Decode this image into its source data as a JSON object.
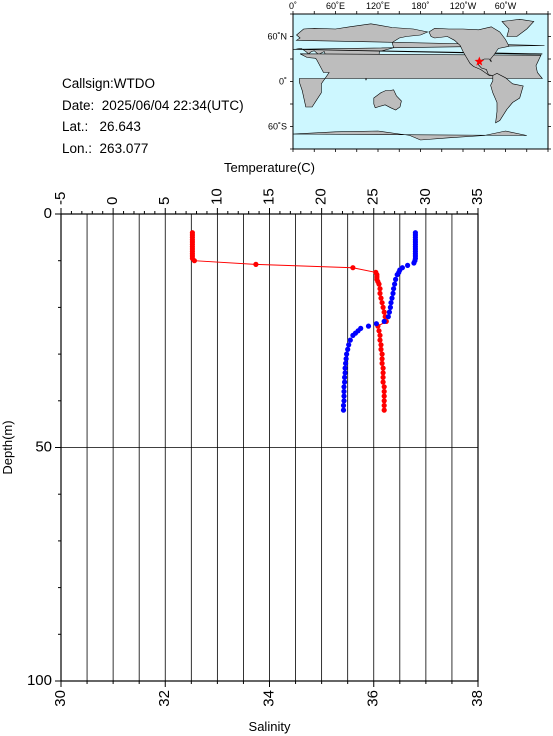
{
  "info": {
    "callsign_label": "Callsign:",
    "callsign": "WTDO",
    "date_label": "Date:",
    "date": "2025/06/04 22:34(UTC)",
    "lat_label": "Lat.:",
    "lat": "26.643",
    "lon_label": "Lon.:",
    "lon": "263.077"
  },
  "map": {
    "lon_labels": [
      "0˚",
      "60˚E",
      "120˚E",
      "180˚",
      "120˚W",
      "60˚W"
    ],
    "lat_labels": [
      "60˚N",
      "0˚",
      "60˚S"
    ],
    "ocean_color": "#cdf7ff",
    "land_color": "#bdbdbd",
    "marker": {
      "lat": 26.643,
      "lon": 263.077,
      "symbol": "star",
      "color": "#ff0000"
    }
  },
  "chart_data": {
    "type": "scatter",
    "title": "",
    "ylabel": "Depth(m)",
    "ylim": [
      0,
      100
    ],
    "y_inverted": true,
    "y_ticks": [
      0,
      50,
      100
    ],
    "top_axis": {
      "label": "Temperature(C)",
      "range": [
        -5,
        35
      ],
      "ticks": [
        -5,
        0,
        5,
        10,
        15,
        20,
        25,
        30,
        35
      ]
    },
    "bottom_axis": {
      "label": "Salinity",
      "range": [
        30,
        38
      ],
      "ticks": [
        30,
        32,
        34,
        36,
        38
      ]
    },
    "grid": true,
    "series": [
      {
        "axis": "top",
        "color": "#ff0000",
        "connected": true,
        "points": [
          [
            7.6,
            4.0
          ],
          [
            7.6,
            4.5
          ],
          [
            7.6,
            5.0
          ],
          [
            7.6,
            5.5
          ],
          [
            7.6,
            6.0
          ],
          [
            7.6,
            6.5
          ],
          [
            7.6,
            7.0
          ],
          [
            7.6,
            7.5
          ],
          [
            7.6,
            8.0
          ],
          [
            7.6,
            8.5
          ],
          [
            7.6,
            9.0
          ],
          [
            7.6,
            9.5
          ],
          [
            7.8,
            10.0
          ],
          [
            13.7,
            10.8
          ],
          [
            23.0,
            11.5
          ],
          [
            25.2,
            12.5
          ],
          [
            25.3,
            13.0
          ],
          [
            25.3,
            13.5
          ],
          [
            25.3,
            14.0
          ],
          [
            25.4,
            14.5
          ],
          [
            25.5,
            15.0
          ],
          [
            25.6,
            16.0
          ],
          [
            25.6,
            17.0
          ],
          [
            25.7,
            18.0
          ],
          [
            25.8,
            19.0
          ],
          [
            25.9,
            20.0
          ],
          [
            26.0,
            21.0
          ],
          [
            26.1,
            22.0
          ],
          [
            26.2,
            23.0
          ],
          [
            25.4,
            24.0
          ],
          [
            25.5,
            25.0
          ],
          [
            25.6,
            26.0
          ],
          [
            25.6,
            27.0
          ],
          [
            25.7,
            28.0
          ],
          [
            25.7,
            29.0
          ],
          [
            25.8,
            30.0
          ],
          [
            25.8,
            31.0
          ],
          [
            25.8,
            32.0
          ],
          [
            25.9,
            33.0
          ],
          [
            25.9,
            34.0
          ],
          [
            25.9,
            35.0
          ],
          [
            25.9,
            36.0
          ],
          [
            26.0,
            37.0
          ],
          [
            26.0,
            38.0
          ],
          [
            26.0,
            39.0
          ],
          [
            26.0,
            40.0
          ],
          [
            26.0,
            41.0
          ],
          [
            26.0,
            42.0
          ]
        ]
      },
      {
        "axis": "bottom",
        "color": "#0000ff",
        "connected": false,
        "points": [
          [
            36.8,
            4.0
          ],
          [
            36.8,
            4.5
          ],
          [
            36.8,
            5.0
          ],
          [
            36.8,
            5.5
          ],
          [
            36.8,
            6.0
          ],
          [
            36.8,
            6.5
          ],
          [
            36.8,
            7.0
          ],
          [
            36.8,
            7.5
          ],
          [
            36.8,
            8.0
          ],
          [
            36.8,
            8.5
          ],
          [
            36.8,
            9.0
          ],
          [
            36.8,
            9.5
          ],
          [
            36.79,
            10.0
          ],
          [
            36.77,
            10.5
          ],
          [
            36.65,
            11.0
          ],
          [
            36.55,
            11.5
          ],
          [
            36.5,
            12.0
          ],
          [
            36.48,
            12.5
          ],
          [
            36.45,
            13.0
          ],
          [
            36.42,
            14.0
          ],
          [
            36.4,
            15.0
          ],
          [
            36.38,
            16.0
          ],
          [
            36.37,
            17.0
          ],
          [
            36.35,
            18.0
          ],
          [
            36.33,
            19.0
          ],
          [
            36.32,
            20.0
          ],
          [
            36.3,
            21.0
          ],
          [
            36.28,
            22.0
          ],
          [
            36.2,
            23.0
          ],
          [
            36.05,
            23.5
          ],
          [
            35.9,
            24.0
          ],
          [
            35.75,
            24.5
          ],
          [
            35.7,
            25.0
          ],
          [
            35.65,
            25.5
          ],
          [
            35.6,
            26.0
          ],
          [
            35.55,
            27.0
          ],
          [
            35.52,
            28.0
          ],
          [
            35.5,
            29.0
          ],
          [
            35.48,
            30.0
          ],
          [
            35.47,
            31.0
          ],
          [
            35.46,
            32.0
          ],
          [
            35.45,
            33.0
          ],
          [
            35.45,
            34.0
          ],
          [
            35.44,
            35.0
          ],
          [
            35.44,
            36.0
          ],
          [
            35.43,
            37.0
          ],
          [
            35.43,
            38.0
          ],
          [
            35.43,
            39.0
          ],
          [
            35.43,
            40.0
          ],
          [
            35.42,
            41.0
          ],
          [
            35.42,
            42.0
          ]
        ]
      }
    ]
  }
}
